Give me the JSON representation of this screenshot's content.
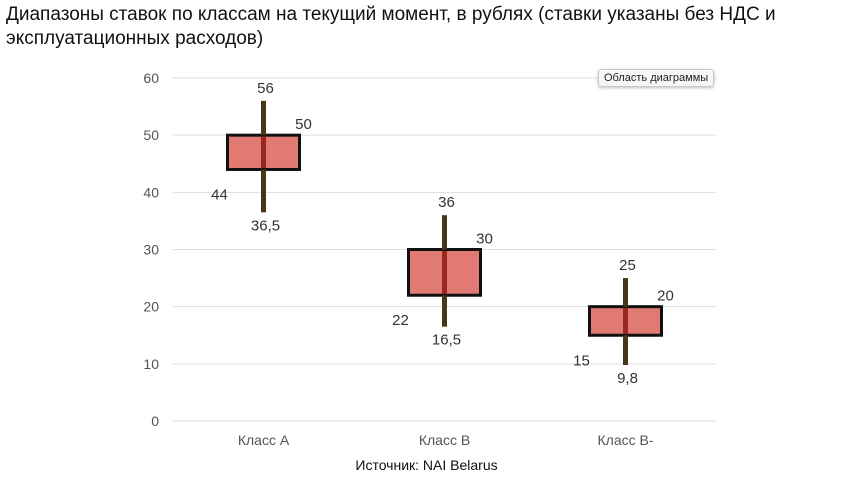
{
  "title": "Диапазоны ставок по классам на текущий момент, в рублях (ставки указаны без НДС и эксплуатационных расходов)",
  "tooltip": "Область диаграммы",
  "source": "Источник: NAI Belarus",
  "colors": {
    "box_fill": "#e07a72",
    "box_stroke": "#111111",
    "whisker": "#4a3716",
    "whisker_inner": "#8b1a0e",
    "grid": "#dddddd"
  },
  "chart_data": {
    "type": "box",
    "categories": [
      "Класс A",
      "Класс B",
      "Класс B-"
    ],
    "ylim": [
      0,
      60
    ],
    "yticks": [
      0,
      10,
      20,
      30,
      40,
      50,
      60
    ],
    "grid": true,
    "boxes": [
      {
        "max": 56,
        "q3": 50,
        "q1": 44,
        "min": 36.5,
        "labels": {
          "max": "56",
          "q3": "50",
          "q1": "44",
          "min": "36,5"
        }
      },
      {
        "max": 36,
        "q3": 30,
        "q1": 22,
        "min": 16.5,
        "labels": {
          "max": "36",
          "q3": "30",
          "q1": "22",
          "min": "16,5"
        }
      },
      {
        "max": 25,
        "q3": 20,
        "q1": 15,
        "min": 9.8,
        "labels": {
          "max": "25",
          "q3": "20",
          "q1": "15",
          "min": "9,8"
        }
      }
    ]
  }
}
